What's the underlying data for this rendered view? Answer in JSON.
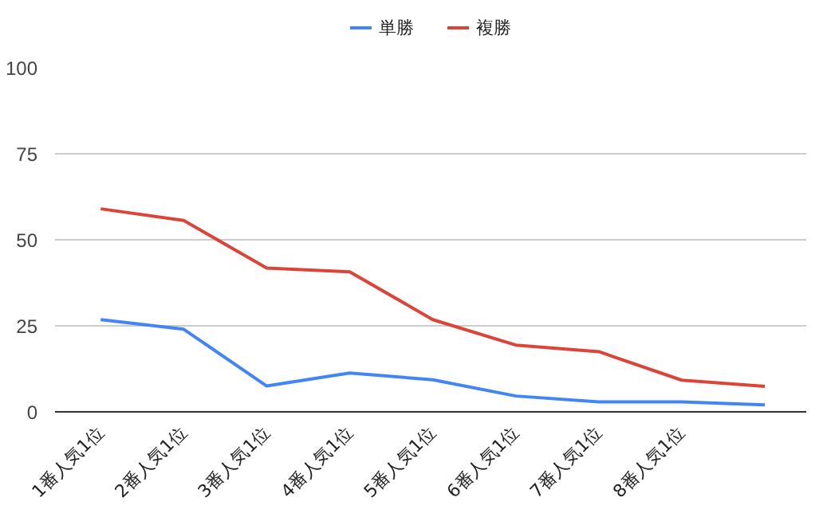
{
  "chart_data": {
    "type": "line",
    "categories": [
      "1番人気1位",
      "2番人気1位",
      "3番人気1位",
      "4番人気1位",
      "5番人気1位",
      "6番人気1位",
      "7番人気1位",
      "8番人気1位",
      null
    ],
    "series": [
      {
        "name": "単勝",
        "color": "#4285f4",
        "values": [
          26.8,
          24.0,
          7.5,
          11.3,
          9.3,
          4.6,
          2.9,
          2.9,
          2.0
        ]
      },
      {
        "name": "複勝",
        "color": "#db4437",
        "values": [
          59.0,
          55.6,
          41.8,
          40.7,
          26.8,
          19.4,
          17.5,
          9.2,
          7.4
        ]
      }
    ],
    "ylim": [
      0,
      100
    ],
    "yticks": [
      0,
      25,
      50,
      75,
      100
    ],
    "grid": "y",
    "legend": "top",
    "marker": "none",
    "line_style": "solid"
  }
}
